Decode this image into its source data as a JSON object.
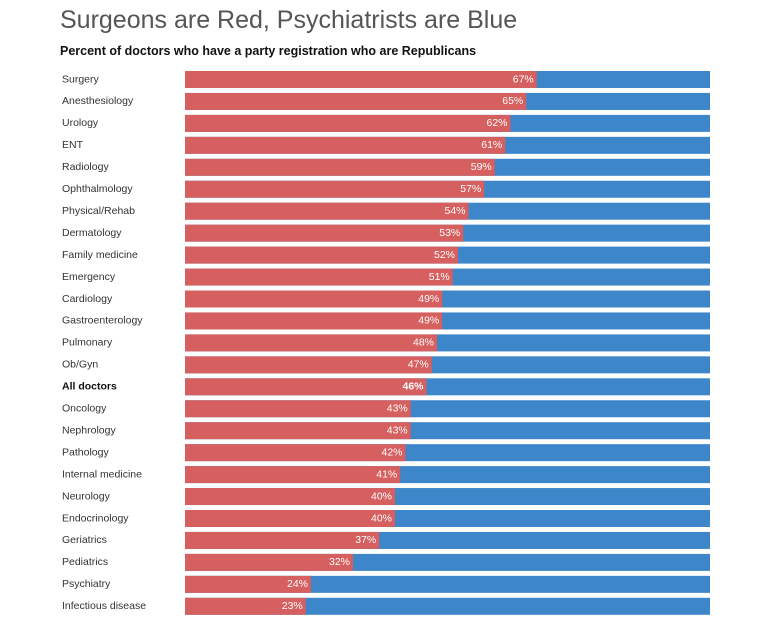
{
  "chart_data": {
    "type": "bar",
    "stacked": true,
    "orientation": "horizontal",
    "title": "Surgeons are Red, Psychiatrists are Blue",
    "subtitle": "Percent of doctors who have a party registration who are Republicans",
    "xlabel": "",
    "ylabel": "",
    "xlim": [
      0,
      100
    ],
    "grid": false,
    "legend": "none",
    "categories": [
      "Surgery",
      "Anesthesiology",
      "Urology",
      "ENT",
      "Radiology",
      "Ophthalmology",
      "Physical/Rehab",
      "Dermatology",
      "Family medicine",
      "Emergency",
      "Cardiology",
      "Gastroenterology",
      "Pulmonary",
      "Ob/Gyn",
      "All doctors",
      "Oncology",
      "Nephrology",
      "Pathology",
      "Internal medicine",
      "Neurology",
      "Endocrinology",
      "Geriatrics",
      "Pediatrics",
      "Psychiatry",
      "Infectious disease"
    ],
    "values": [
      67,
      65,
      62,
      61,
      59,
      57,
      54,
      53,
      52,
      51,
      49,
      49,
      48,
      47,
      46,
      43,
      43,
      42,
      41,
      40,
      40,
      37,
      32,
      24,
      23
    ],
    "value_labels": [
      "67%",
      "65%",
      "62%",
      "61%",
      "59%",
      "57%",
      "54%",
      "53%",
      "52%",
      "51%",
      "49%",
      "49%",
      "48%",
      "47%",
      "46%",
      "43%",
      "43%",
      "42%",
      "41%",
      "40%",
      "40%",
      "37%",
      "32%",
      "24%",
      "23%"
    ],
    "highlight_category": "All doctors",
    "colors": {
      "republican": "#d65f5f",
      "democrat": "#3c86c9"
    }
  }
}
